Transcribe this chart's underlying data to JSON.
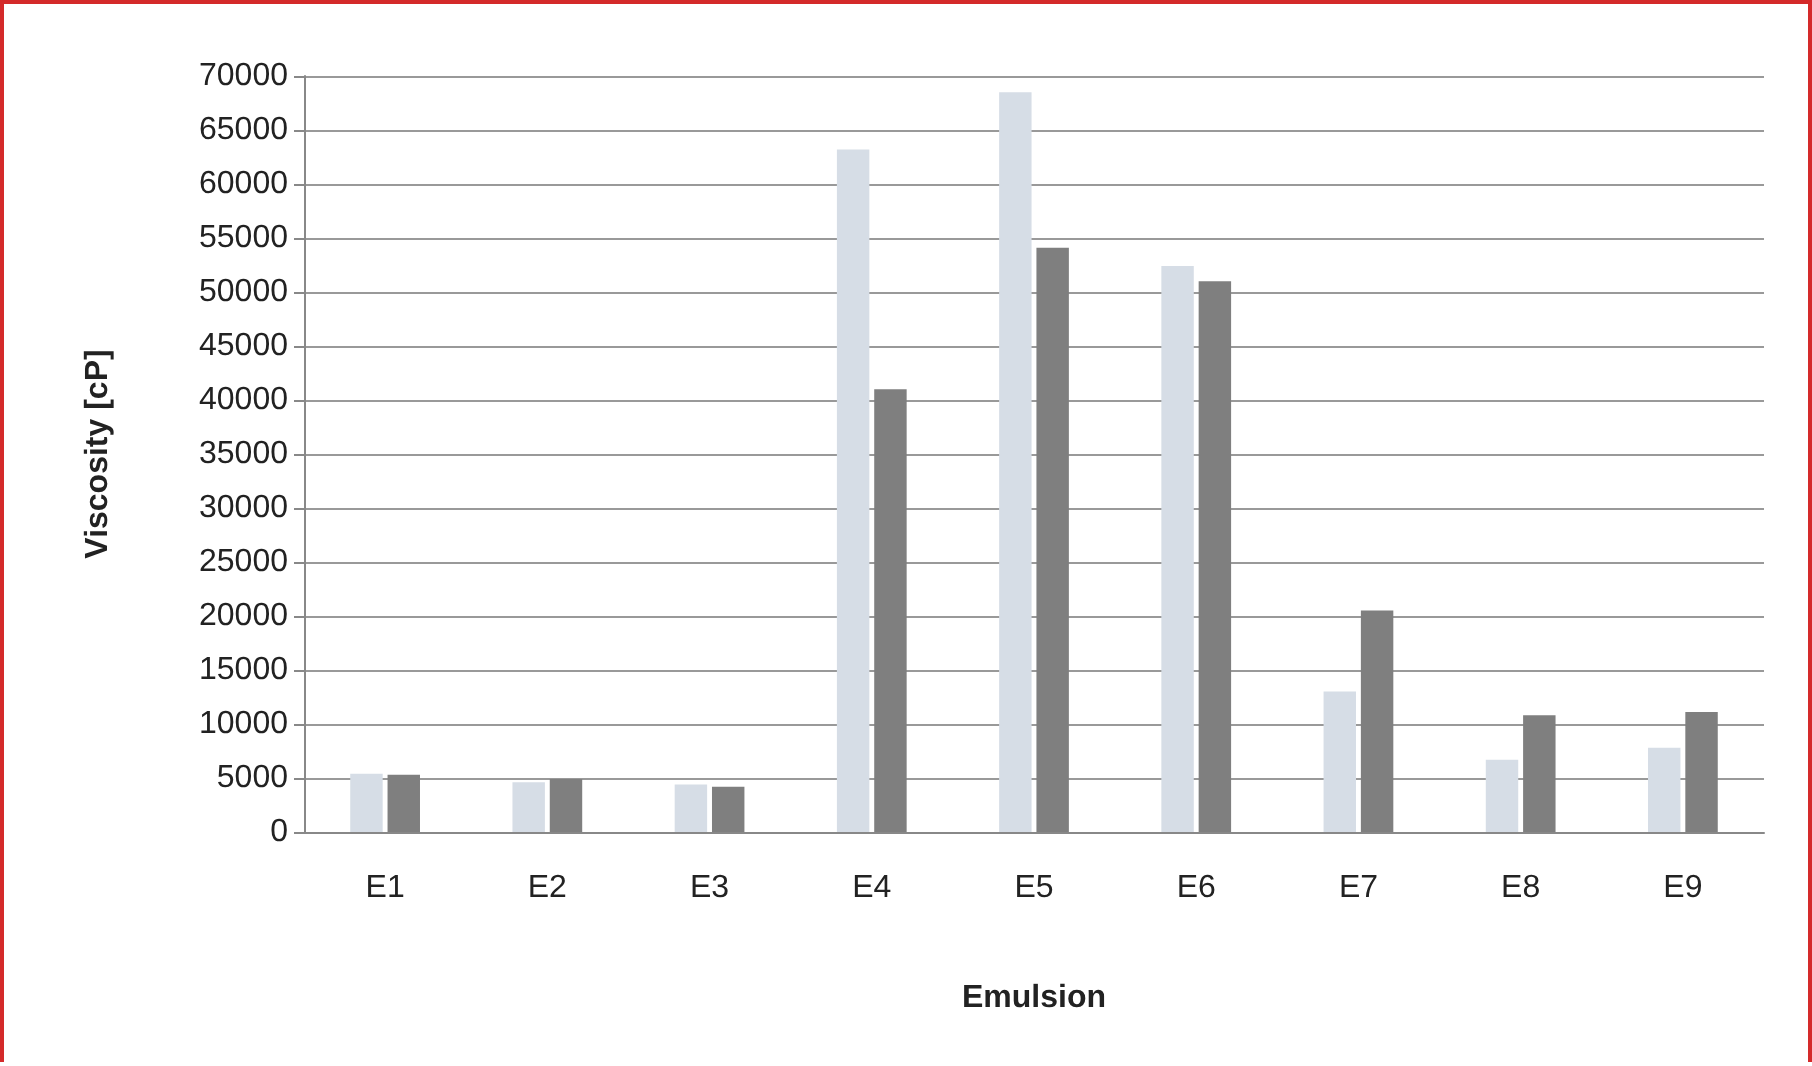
{
  "chart_data": {
    "type": "bar",
    "xlabel": "Emulsion",
    "ylabel": "Viscosity [cP]",
    "categories": [
      "E1",
      "E2",
      "E3",
      "E4",
      "E5",
      "E6",
      "E7",
      "E8",
      "E9"
    ],
    "series": [
      {
        "color": "#d6dde6",
        "values": [
          5400,
          4600,
          4400,
          63200,
          68500,
          52400,
          13000,
          6700,
          7800
        ]
      },
      {
        "color": "#7f7f7f",
        "values": [
          5300,
          4900,
          4200,
          41000,
          54100,
          51000,
          20500,
          10800,
          11100
        ]
      }
    ],
    "ylim": [
      0,
      70000
    ],
    "yticks": [
      0,
      5000,
      10000,
      15000,
      20000,
      25000,
      30000,
      35000,
      40000,
      45000,
      50000,
      55000,
      60000,
      65000,
      70000
    ],
    "grid": "y"
  }
}
